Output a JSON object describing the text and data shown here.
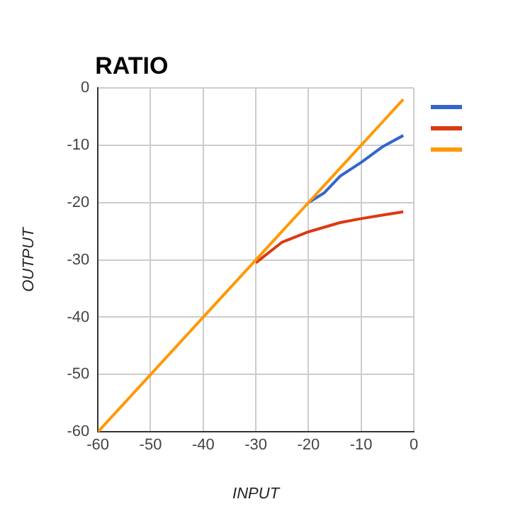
{
  "chart_data": {
    "type": "line",
    "title": "RATIO",
    "xlabel": "INPUT",
    "ylabel": "OUTPUT",
    "x": [
      -60,
      -50,
      -40,
      -30,
      -25,
      -20,
      -17,
      -14,
      -10,
      -6,
      -2
    ],
    "series": [
      {
        "color": "#3366cc",
        "values": [
          null,
          null,
          null,
          null,
          null,
          -20,
          -18.3,
          -15.4,
          -13,
          -10.3,
          -8.3
        ]
      },
      {
        "color": "#dc3912",
        "values": [
          null,
          null,
          null,
          -30.5,
          -26.9,
          -25.1,
          -24.3,
          -23.5,
          -22.8,
          -22.2,
          -21.6
        ]
      },
      {
        "color": "#ff9900",
        "values": [
          -60,
          -50,
          -40,
          -30,
          -25,
          -20,
          -17,
          -14,
          -10,
          -6,
          -2
        ]
      }
    ],
    "xlim": [
      -60,
      0
    ],
    "ylim": [
      -60,
      0
    ],
    "xticks": [
      -60,
      -50,
      -40,
      -30,
      -20,
      -10,
      0
    ],
    "yticks": [
      -60,
      -50,
      -40,
      -30,
      -20,
      -10,
      0
    ],
    "grid": true,
    "marker": "none",
    "line_style": "solid"
  }
}
